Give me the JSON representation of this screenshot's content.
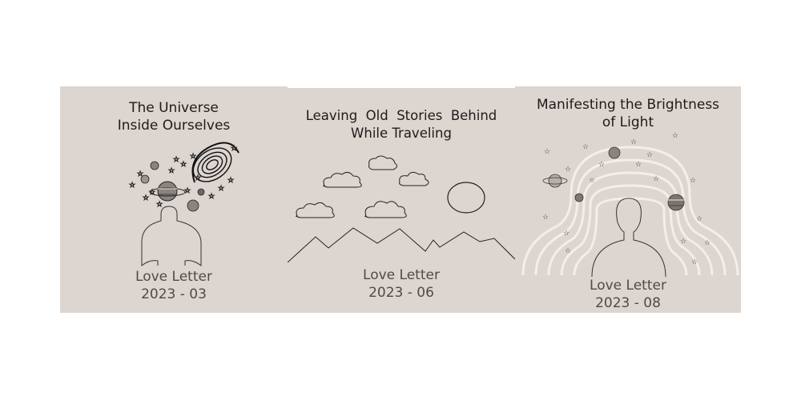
{
  "cards": [
    {
      "title_lines": [
        "The Universe",
        "Inside Ourselves"
      ],
      "label": "Love Letter",
      "date": "2023 - 03",
      "illustration_icons": [
        "person-bust-icon",
        "spiral-galaxy-icon",
        "ringed-planet-icon",
        "planet-icon",
        "star-icon"
      ]
    },
    {
      "title_lines": [
        "Leaving  Old  Stories  Behind",
        "While Traveling"
      ],
      "label": "Love Letter",
      "date": "2023 - 06",
      "illustration_icons": [
        "cloud-icon",
        "sun-circle-icon",
        "mountain-range-icon"
      ]
    },
    {
      "title_lines": [
        "Manifesting the Brightness",
        "of Light"
      ],
      "label": "Love Letter",
      "date": "2023 - 08",
      "illustration_icons": [
        "person-silhouette-icon",
        "light-arcs-icon",
        "ringed-planet-icon",
        "planet-icon",
        "star-icon"
      ]
    }
  ],
  "colors": {
    "panel_background": "#ddd5d0",
    "title_text": "#1c1c1c",
    "subtitle_text": "#4f4b48",
    "light_arcs": "#f3efe8"
  }
}
